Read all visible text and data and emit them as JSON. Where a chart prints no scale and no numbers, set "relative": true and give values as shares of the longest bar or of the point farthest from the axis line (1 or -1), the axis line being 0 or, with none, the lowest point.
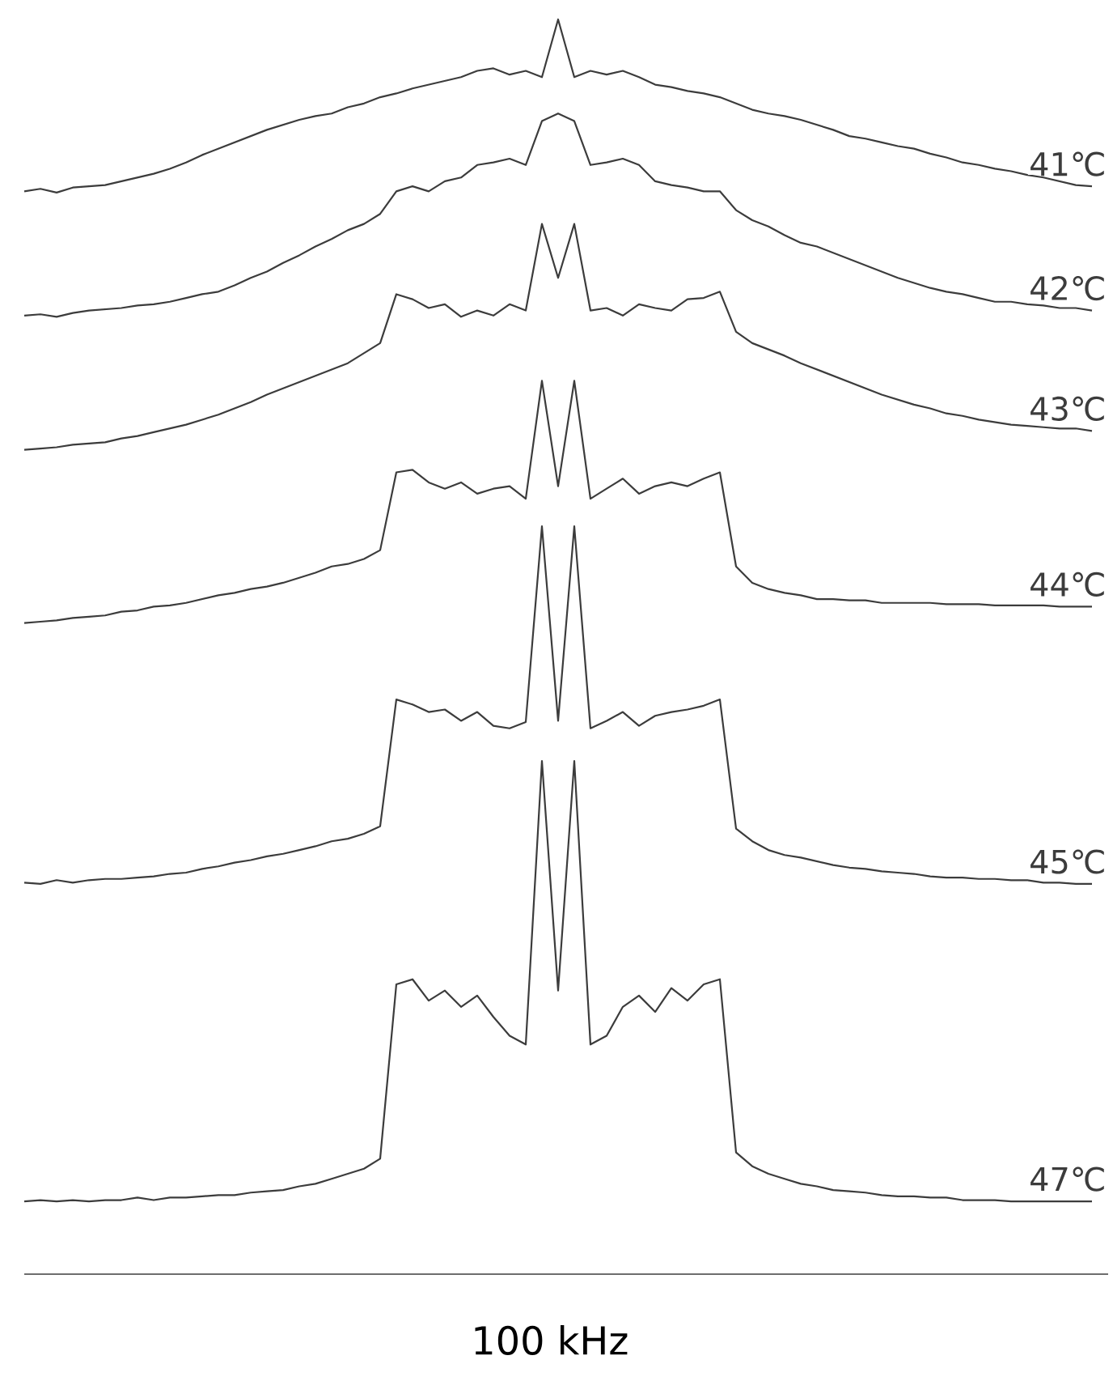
{
  "chart_data": {
    "type": "line",
    "relative": true,
    "xlabel": "100 kHz",
    "categories": [
      null,
      null,
      null,
      null,
      null,
      null,
      null,
      null,
      null,
      null,
      null,
      null,
      null,
      null,
      null,
      null,
      null,
      null,
      null,
      null,
      null,
      null,
      null,
      null,
      null,
      null,
      null,
      null,
      null,
      null,
      null,
      null,
      null,
      null,
      null,
      null,
      null,
      null,
      null,
      null,
      null,
      null,
      null,
      null,
      null,
      null,
      null,
      null,
      null,
      null,
      null,
      null,
      null,
      null,
      null,
      null,
      null,
      null,
      null,
      null,
      null,
      null,
      null,
      null,
      null,
      null,
      null
    ],
    "series": [
      {
        "name": "41℃",
        "color": "#3c3c3c",
        "values": [
          0.863,
          0.865,
          0.862,
          0.866,
          0.867,
          0.868,
          0.871,
          0.874,
          0.877,
          0.881,
          0.886,
          0.892,
          0.897,
          0.902,
          0.907,
          0.912,
          0.916,
          0.92,
          0.923,
          0.925,
          0.93,
          0.933,
          0.938,
          0.941,
          0.945,
          0.948,
          0.951,
          0.954,
          0.959,
          0.961,
          0.956,
          0.959,
          0.954,
          1.0,
          0.954,
          0.959,
          0.956,
          0.959,
          0.954,
          0.948,
          0.946,
          0.943,
          0.941,
          0.938,
          0.933,
          0.928,
          0.925,
          0.923,
          0.92,
          0.916,
          0.912,
          0.907,
          0.905,
          0.902,
          0.899,
          0.897,
          0.893,
          0.89,
          0.886,
          0.884,
          0.881,
          0.879,
          0.876,
          0.874,
          0.871,
          0.868,
          0.867
        ]
      },
      {
        "name": "42℃",
        "color": "#3c3c3c",
        "values": [
          0.764,
          0.765,
          0.763,
          0.766,
          0.768,
          0.769,
          0.77,
          0.772,
          0.773,
          0.775,
          0.778,
          0.781,
          0.783,
          0.788,
          0.794,
          0.799,
          0.806,
          0.812,
          0.819,
          0.825,
          0.832,
          0.837,
          0.845,
          0.863,
          0.867,
          0.863,
          0.871,
          0.874,
          0.884,
          0.886,
          0.889,
          0.884,
          0.919,
          0.925,
          0.919,
          0.884,
          0.886,
          0.889,
          0.884,
          0.871,
          0.868,
          0.866,
          0.863,
          0.863,
          0.848,
          0.84,
          0.835,
          0.828,
          0.822,
          0.819,
          0.814,
          0.809,
          0.804,
          0.799,
          0.794,
          0.79,
          0.786,
          0.783,
          0.781,
          0.778,
          0.775,
          0.775,
          0.773,
          0.772,
          0.77,
          0.77,
          0.768
        ]
      },
      {
        "name": "43℃",
        "color": "#3c3c3c",
        "values": [
          0.657,
          0.658,
          0.659,
          0.661,
          0.662,
          0.663,
          0.666,
          0.668,
          0.671,
          0.674,
          0.677,
          0.681,
          0.685,
          0.69,
          0.695,
          0.701,
          0.706,
          0.711,
          0.716,
          0.721,
          0.726,
          0.734,
          0.742,
          0.781,
          0.777,
          0.77,
          0.773,
          0.763,
          0.768,
          0.764,
          0.773,
          0.768,
          0.837,
          0.794,
          0.837,
          0.768,
          0.77,
          0.764,
          0.773,
          0.77,
          0.768,
          0.777,
          0.778,
          0.783,
          0.751,
          0.742,
          0.737,
          0.732,
          0.726,
          0.721,
          0.716,
          0.711,
          0.706,
          0.701,
          0.697,
          0.693,
          0.69,
          0.686,
          0.684,
          0.681,
          0.679,
          0.677,
          0.676,
          0.675,
          0.674,
          0.674,
          0.672
        ]
      },
      {
        "name": "44℃",
        "color": "#3c3c3c",
        "values": [
          0.519,
          0.52,
          0.521,
          0.523,
          0.524,
          0.525,
          0.528,
          0.529,
          0.532,
          0.533,
          0.535,
          0.538,
          0.541,
          0.543,
          0.546,
          0.548,
          0.551,
          0.555,
          0.559,
          0.564,
          0.566,
          0.57,
          0.577,
          0.639,
          0.641,
          0.631,
          0.626,
          0.631,
          0.622,
          0.626,
          0.628,
          0.618,
          0.712,
          0.628,
          0.712,
          0.618,
          0.626,
          0.634,
          0.622,
          0.628,
          0.631,
          0.628,
          0.634,
          0.639,
          0.564,
          0.551,
          0.546,
          0.543,
          0.541,
          0.538,
          0.538,
          0.537,
          0.537,
          0.535,
          0.535,
          0.535,
          0.535,
          0.534,
          0.534,
          0.534,
          0.533,
          0.533,
          0.533,
          0.533,
          0.532,
          0.532,
          0.532
        ]
      },
      {
        "name": "45℃",
        "color": "#3c3c3c",
        "values": [
          0.312,
          0.311,
          0.314,
          0.312,
          0.314,
          0.315,
          0.315,
          0.316,
          0.317,
          0.319,
          0.32,
          0.323,
          0.325,
          0.328,
          0.33,
          0.333,
          0.335,
          0.338,
          0.341,
          0.345,
          0.347,
          0.351,
          0.357,
          0.458,
          0.454,
          0.448,
          0.45,
          0.441,
          0.448,
          0.437,
          0.435,
          0.44,
          0.596,
          0.441,
          0.596,
          0.435,
          0.441,
          0.448,
          0.437,
          0.445,
          0.448,
          0.45,
          0.453,
          0.458,
          0.355,
          0.345,
          0.338,
          0.334,
          0.332,
          0.329,
          0.326,
          0.324,
          0.323,
          0.321,
          0.32,
          0.319,
          0.317,
          0.316,
          0.316,
          0.315,
          0.315,
          0.314,
          0.314,
          0.312,
          0.312,
          0.311,
          0.311
        ]
      },
      {
        "name": "47℃",
        "color": "#3c3c3c",
        "values": [
          0.058,
          0.059,
          0.058,
          0.059,
          0.058,
          0.059,
          0.059,
          0.061,
          0.059,
          0.061,
          0.061,
          0.062,
          0.063,
          0.063,
          0.065,
          0.066,
          0.067,
          0.07,
          0.072,
          0.076,
          0.08,
          0.084,
          0.092,
          0.231,
          0.235,
          0.218,
          0.226,
          0.213,
          0.222,
          0.205,
          0.19,
          0.183,
          0.409,
          0.226,
          0.409,
          0.183,
          0.19,
          0.213,
          0.222,
          0.209,
          0.228,
          0.218,
          0.231,
          0.235,
          0.097,
          0.086,
          0.08,
          0.076,
          0.072,
          0.07,
          0.067,
          0.066,
          0.065,
          0.063,
          0.062,
          0.062,
          0.061,
          0.061,
          0.059,
          0.059,
          0.059,
          0.058,
          0.058,
          0.058,
          0.058,
          0.058,
          0.058
        ]
      }
    ]
  }
}
